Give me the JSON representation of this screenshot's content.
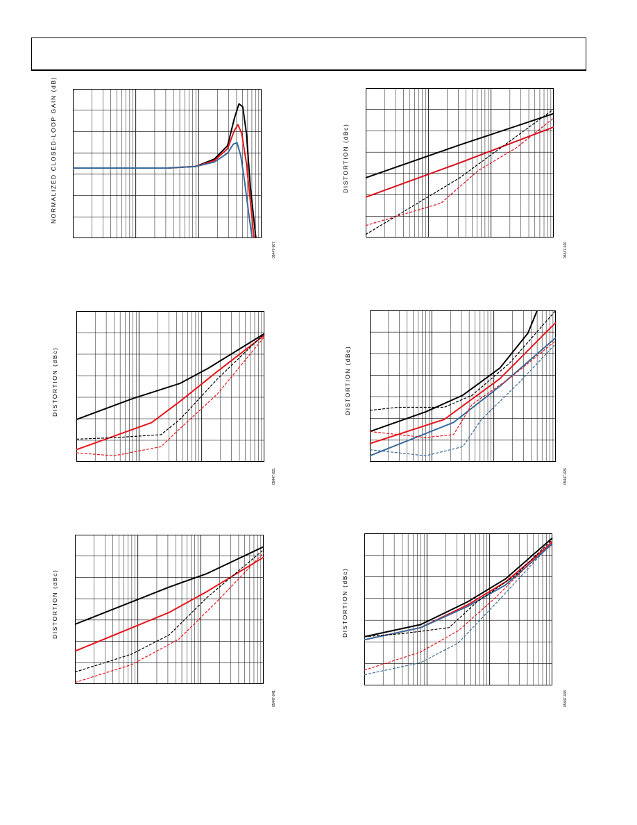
{
  "colors": {
    "black": "#000000",
    "red": "#e8141b",
    "blue": "#3a6a9a",
    "dkred": "#d81020"
  },
  "charts": [
    {
      "ylabel": "NORMALIZED CLOSED-LOOP GAIN (dB)",
      "fig": "05447-007"
    },
    {
      "ylabel": "DISTORTION (dBc)",
      "fig": "05447-020"
    },
    {
      "ylabel": "DISTORTION (dBc)",
      "fig": "05447-021"
    },
    {
      "ylabel": "DISTORTION (dBc)",
      "fig": "05447-026"
    },
    {
      "ylabel": "DISTORTION (dBc)",
      "fig": "05447-041"
    },
    {
      "ylabel": "DISTORTION (dBc)",
      "fig": "05447-043"
    }
  ],
  "chart_data": [
    {
      "type": "line",
      "title": "",
      "xlabel": "",
      "ylabel": "NORMALIZED CLOSED-LOOP GAIN (dB)",
      "x_scale": "log",
      "grid": true,
      "series": [
        {
          "color": "black",
          "style": "solid",
          "points": [
            [
              0,
              0.53
            ],
            [
              0.5,
              0.53
            ],
            [
              0.65,
              0.52
            ],
            [
              0.75,
              0.47
            ],
            [
              0.82,
              0.38
            ],
            [
              0.855,
              0.2
            ],
            [
              0.88,
              0.1
            ],
            [
              0.9,
              0.12
            ],
            [
              0.92,
              0.3
            ],
            [
              0.94,
              0.65
            ],
            [
              0.97,
              1.0
            ]
          ]
        },
        {
          "color": "red",
          "style": "solid",
          "points": [
            [
              0,
              0.53
            ],
            [
              0.5,
              0.53
            ],
            [
              0.65,
              0.52
            ],
            [
              0.75,
              0.48
            ],
            [
              0.82,
              0.4
            ],
            [
              0.855,
              0.28
            ],
            [
              0.875,
              0.24
            ],
            [
              0.895,
              0.3
            ],
            [
              0.92,
              0.5
            ],
            [
              0.94,
              0.75
            ],
            [
              0.96,
              1.0
            ]
          ]
        },
        {
          "color": "blue",
          "style": "solid",
          "points": [
            [
              0,
              0.53
            ],
            [
              0.5,
              0.53
            ],
            [
              0.65,
              0.52
            ],
            [
              0.75,
              0.49
            ],
            [
              0.82,
              0.43
            ],
            [
              0.85,
              0.37
            ],
            [
              0.87,
              0.36
            ],
            [
              0.89,
              0.45
            ],
            [
              0.91,
              0.62
            ],
            [
              0.93,
              0.82
            ],
            [
              0.95,
              1.0
            ]
          ]
        }
      ]
    },
    {
      "type": "line",
      "title": "",
      "xlabel": "",
      "ylabel": "DISTORTION (dBc)",
      "x_scale": "log",
      "grid": true,
      "series": [
        {
          "color": "black",
          "style": "solid",
          "points": [
            [
              0,
              0.6
            ],
            [
              0.5,
              0.38
            ],
            [
              1,
              0.17
            ]
          ]
        },
        {
          "color": "dkred",
          "style": "solid",
          "points": [
            [
              0,
              0.73
            ],
            [
              0.5,
              0.5
            ],
            [
              1,
              0.26
            ]
          ]
        },
        {
          "color": "black",
          "style": "dashed",
          "points": [
            [
              0,
              0.98
            ],
            [
              0.5,
              0.6
            ],
            [
              1,
              0.14
            ]
          ]
        },
        {
          "color": "dkred",
          "style": "dashed",
          "points": [
            [
              0,
              0.92
            ],
            [
              0.4,
              0.77
            ],
            [
              0.6,
              0.55
            ],
            [
              0.8,
              0.4
            ],
            [
              1,
              0.2
            ]
          ]
        }
      ]
    },
    {
      "type": "line",
      "title": "",
      "xlabel": "",
      "ylabel": "DISTORTION (dBc)",
      "x_scale": "log",
      "grid": true,
      "series": [
        {
          "color": "black",
          "style": "solid",
          "points": [
            [
              0,
              0.72
            ],
            [
              0.3,
              0.58
            ],
            [
              0.55,
              0.48
            ],
            [
              0.7,
              0.38
            ],
            [
              1,
              0.15
            ]
          ]
        },
        {
          "color": "red",
          "style": "solid",
          "points": [
            [
              0,
              0.92
            ],
            [
              0.4,
              0.74
            ],
            [
              0.55,
              0.6
            ],
            [
              0.75,
              0.4
            ],
            [
              1,
              0.16
            ]
          ]
        },
        {
          "color": "black",
          "style": "dashed",
          "points": [
            [
              0,
              0.85
            ],
            [
              0.2,
              0.84
            ],
            [
              0.45,
              0.82
            ],
            [
              0.55,
              0.72
            ],
            [
              0.75,
              0.45
            ],
            [
              1,
              0.15
            ]
          ]
        },
        {
          "color": "red",
          "style": "dashed",
          "points": [
            [
              0,
              0.94
            ],
            [
              0.2,
              0.96
            ],
            [
              0.45,
              0.9
            ],
            [
              0.55,
              0.78
            ],
            [
              0.75,
              0.55
            ],
            [
              1,
              0.17
            ]
          ]
        }
      ]
    },
    {
      "type": "line",
      "title": "",
      "xlabel": "",
      "ylabel": "DISTORTION (dBc)",
      "x_scale": "log",
      "grid": true,
      "series": [
        {
          "color": "black",
          "style": "solid",
          "points": [
            [
              0,
              0.8
            ],
            [
              0.3,
              0.67
            ],
            [
              0.5,
              0.56
            ],
            [
              0.7,
              0.38
            ],
            [
              0.85,
              0.15
            ],
            [
              0.9,
              0.0
            ]
          ]
        },
        {
          "color": "red",
          "style": "solid",
          "points": [
            [
              0,
              0.88
            ],
            [
              0.4,
              0.72
            ],
            [
              0.7,
              0.45
            ],
            [
              1,
              0.08
            ]
          ]
        },
        {
          "color": "blue",
          "style": "solid",
          "points": [
            [
              0,
              0.96
            ],
            [
              0.45,
              0.74
            ],
            [
              0.7,
              0.5
            ],
            [
              1,
              0.18
            ]
          ]
        },
        {
          "color": "black",
          "style": "dashed",
          "points": [
            [
              0,
              0.66
            ],
            [
              0.15,
              0.64
            ],
            [
              0.4,
              0.64
            ],
            [
              0.55,
              0.56
            ],
            [
              0.75,
              0.35
            ],
            [
              1,
              0.0
            ]
          ]
        },
        {
          "color": "red",
          "style": "dashed",
          "points": [
            [
              0,
              0.8
            ],
            [
              0.3,
              0.84
            ],
            [
              0.45,
              0.82
            ],
            [
              0.55,
              0.62
            ],
            [
              0.75,
              0.45
            ],
            [
              1,
              0.2
            ]
          ]
        },
        {
          "color": "blue",
          "style": "dashed",
          "points": [
            [
              0,
              0.92
            ],
            [
              0.3,
              0.96
            ],
            [
              0.5,
              0.9
            ],
            [
              0.6,
              0.72
            ],
            [
              0.8,
              0.48
            ],
            [
              1,
              0.22
            ]
          ]
        }
      ]
    },
    {
      "type": "line",
      "title": "",
      "xlabel": "",
      "ylabel": "DISTORTION (dBc)",
      "x_scale": "log",
      "grid": true,
      "series": [
        {
          "color": "black",
          "style": "solid",
          "points": [
            [
              0,
              0.6
            ],
            [
              0.5,
              0.35
            ],
            [
              0.7,
              0.26
            ],
            [
              1,
              0.08
            ]
          ]
        },
        {
          "color": "red",
          "style": "solid",
          "points": [
            [
              0,
              0.78
            ],
            [
              0.5,
              0.52
            ],
            [
              0.7,
              0.38
            ],
            [
              1,
              0.15
            ]
          ]
        },
        {
          "color": "black",
          "style": "dashed",
          "points": [
            [
              0,
              0.92
            ],
            [
              0.3,
              0.8
            ],
            [
              0.5,
              0.67
            ],
            [
              0.7,
              0.42
            ],
            [
              1,
              0.1
            ]
          ]
        },
        {
          "color": "red",
          "style": "dashed",
          "points": [
            [
              0,
              0.99
            ],
            [
              0.3,
              0.87
            ],
            [
              0.55,
              0.7
            ],
            [
              0.75,
              0.45
            ],
            [
              1,
              0.12
            ]
          ]
        }
      ]
    },
    {
      "type": "line",
      "title": "",
      "xlabel": "",
      "ylabel": "DISTORTION (dBc)",
      "x_scale": "log",
      "grid": true,
      "series": [
        {
          "color": "black",
          "style": "solid",
          "points": [
            [
              0,
              0.68
            ],
            [
              0.3,
              0.6
            ],
            [
              0.55,
              0.45
            ],
            [
              0.75,
              0.3
            ],
            [
              1,
              0.03
            ]
          ]
        },
        {
          "color": "red",
          "style": "solid",
          "points": [
            [
              0,
              0.7
            ],
            [
              0.3,
              0.62
            ],
            [
              0.55,
              0.47
            ],
            [
              0.75,
              0.32
            ],
            [
              1,
              0.06
            ]
          ]
        },
        {
          "color": "blue",
          "style": "solid",
          "points": [
            [
              0,
              0.7
            ],
            [
              0.3,
              0.62
            ],
            [
              0.55,
              0.48
            ],
            [
              0.75,
              0.34
            ],
            [
              1,
              0.07
            ]
          ]
        },
        {
          "color": "black",
          "style": "dashed",
          "points": [
            [
              0,
              0.68
            ],
            [
              0.2,
              0.66
            ],
            [
              0.45,
              0.62
            ],
            [
              0.6,
              0.45
            ],
            [
              0.8,
              0.28
            ],
            [
              1,
              0.04
            ]
          ]
        },
        {
          "color": "red",
          "style": "dashed",
          "points": [
            [
              0,
              0.9
            ],
            [
              0.3,
              0.78
            ],
            [
              0.5,
              0.64
            ],
            [
              0.7,
              0.42
            ],
            [
              1,
              0.05
            ]
          ]
        },
        {
          "color": "blue",
          "style": "dashed",
          "points": [
            [
              0,
              0.93
            ],
            [
              0.3,
              0.85
            ],
            [
              0.5,
              0.72
            ],
            [
              0.7,
              0.46
            ],
            [
              1,
              0.06
            ]
          ]
        }
      ]
    }
  ]
}
